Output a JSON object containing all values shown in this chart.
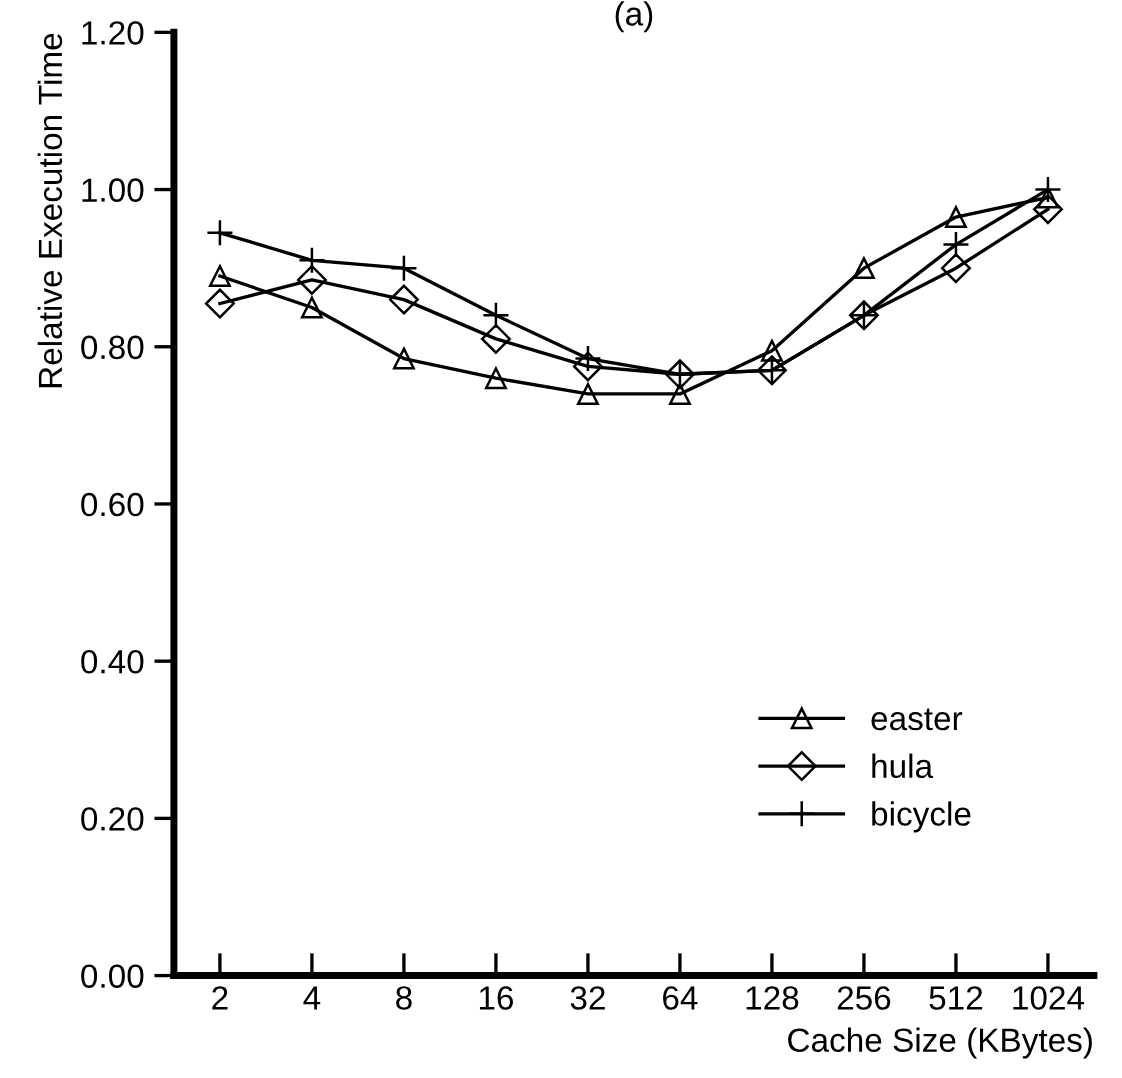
{
  "chart_data": {
    "type": "line",
    "title": "(a)",
    "xlabel": "Cache Size (KBytes)",
    "ylabel": "Relative Execution Time",
    "categories": [
      "2",
      "4",
      "8",
      "16",
      "32",
      "64",
      "128",
      "256",
      "512",
      "1024"
    ],
    "series": [
      {
        "name": "easter",
        "color": "#000000",
        "marker": "triangle",
        "values": [
          0.89,
          0.85,
          0.785,
          0.76,
          0.74,
          0.74,
          0.795,
          0.9,
          0.965,
          0.99
        ]
      },
      {
        "name": "hula",
        "color": "#000000",
        "marker": "diamond",
        "values": [
          0.855,
          0.885,
          0.86,
          0.81,
          0.775,
          0.765,
          0.77,
          0.84,
          0.9,
          0.975
        ]
      },
      {
        "name": "bicycle",
        "color": "#000000",
        "marker": "cross",
        "values": [
          0.945,
          0.91,
          0.9,
          0.84,
          0.785,
          0.765,
          0.77,
          0.84,
          0.93,
          1.0
        ]
      }
    ],
    "ylim": [
      0,
      1.2
    ],
    "yticks": [
      {
        "value": 0,
        "label": "0.00"
      },
      {
        "value": 0.2,
        "label": "0.20"
      },
      {
        "value": 0.4,
        "label": "0.40"
      },
      {
        "value": 0.6,
        "label": "0.60"
      },
      {
        "value": 0.8,
        "label": "0.80"
      },
      {
        "value": 1.0,
        "label": "1.00"
      },
      {
        "value": 1.2,
        "label": "1.20"
      }
    ],
    "grid": false,
    "legend": "bottom right",
    "line_style": "solid"
  }
}
